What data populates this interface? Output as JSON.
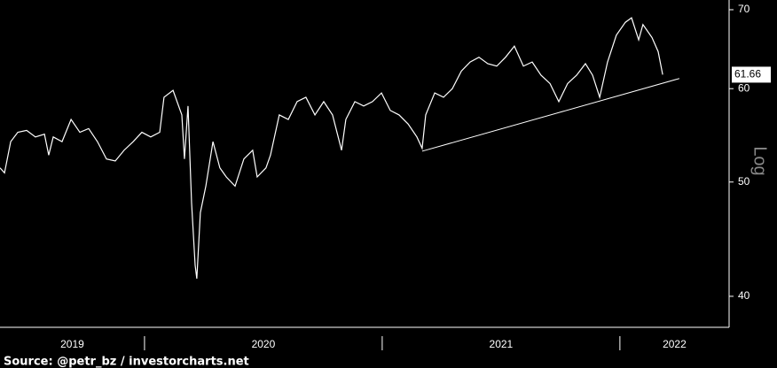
{
  "chart_data": {
    "type": "line",
    "log_scale": true,
    "y_axis_label": "Log",
    "source": "Source: @petr_bz / investorcharts.net",
    "x": [
      2019.392,
      2019.411,
      2019.437,
      2019.467,
      2019.504,
      2019.541,
      2019.579,
      2019.597,
      2019.616,
      2019.653,
      2019.691,
      2019.728,
      2019.765,
      2019.802,
      2019.84,
      2019.877,
      2019.914,
      2019.952,
      2019.989,
      2020.026,
      2020.064,
      2020.082,
      2020.12,
      2020.157,
      2020.168,
      2020.183,
      2020.198,
      2020.213,
      2020.22,
      2020.235,
      2020.258,
      2020.288,
      2020.317,
      2020.344,
      2020.381,
      2020.418,
      2020.455,
      2020.474,
      2020.511,
      2020.53,
      2020.567,
      2020.605,
      2020.642,
      2020.679,
      2020.717,
      2020.754,
      2020.791,
      2020.829,
      2020.847,
      2020.885,
      2020.922,
      2020.959,
      2020.997,
      2021.034,
      2021.071,
      2021.109,
      2021.146,
      2021.168,
      2021.183,
      2021.221,
      2021.258,
      2021.295,
      2021.333,
      2021.37,
      2021.407,
      2021.444,
      2021.482,
      2021.519,
      2021.556,
      2021.594,
      2021.631,
      2021.668,
      2021.706,
      2021.743,
      2021.78,
      2021.818,
      2021.855,
      2021.885,
      2021.915,
      2021.948,
      2021.985,
      2022.023,
      2022.049,
      2022.079,
      2022.097,
      2022.135,
      2022.161,
      2022.18
    ],
    "series": [
      {
        "color": "#ffffff",
        "values": [
          51.4,
          50.9,
          54.1,
          55.1,
          55.3,
          54.6,
          54.9,
          52.7,
          54.6,
          54.1,
          56.5,
          55.1,
          55.5,
          54.1,
          52.3,
          52.1,
          53.2,
          54.1,
          55.1,
          54.6,
          55.1,
          59.0,
          59.8,
          57.0,
          52.3,
          58.0,
          48.0,
          42.5,
          41.4,
          47.1,
          49.6,
          54.1,
          51.4,
          50.5,
          49.6,
          52.3,
          53.2,
          50.5,
          51.4,
          52.7,
          57.0,
          56.5,
          58.5,
          59.0,
          57.0,
          58.5,
          57.0,
          53.2,
          56.5,
          58.5,
          58.0,
          58.5,
          59.5,
          57.5,
          57.0,
          56.0,
          54.6,
          53.4,
          57.0,
          59.5,
          59.0,
          60.0,
          62.1,
          63.2,
          63.8,
          63.0,
          62.7,
          63.8,
          65.2,
          62.7,
          63.2,
          61.6,
          60.6,
          58.5,
          60.6,
          61.6,
          63.0,
          61.6,
          59.0,
          63.2,
          66.6,
          68.3,
          68.9,
          66.0,
          68.0,
          66.3,
          64.5,
          61.66
        ]
      }
    ],
    "trendline": {
      "x": [
        2021.168,
        2022.25
      ],
      "values": [
        53.1,
        61.2
      ],
      "color": "#ffffff"
    },
    "xlim": [
      2019.392,
      2022.452
    ],
    "xticks": [
      {
        "value": 2019,
        "label": "2019"
      },
      {
        "value": 2020,
        "label": "2020"
      },
      {
        "value": 2021,
        "label": "2021"
      },
      {
        "value": 2022,
        "label": "2022"
      }
    ],
    "ylim": [
      37.65,
      71.34
    ],
    "yticks": [
      40,
      50,
      60,
      70
    ]
  }
}
